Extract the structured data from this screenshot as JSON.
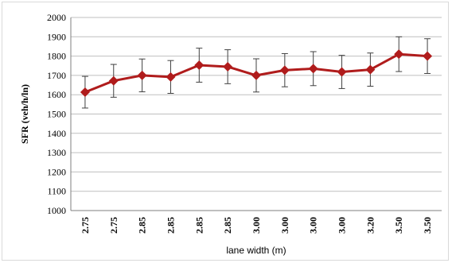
{
  "chart_data": {
    "type": "line",
    "categories": [
      "2.75",
      "2.75",
      "2.85",
      "2.85",
      "2.85",
      "2.85",
      "3.00",
      "3.00",
      "3.00",
      "3.00",
      "3.20",
      "3.50",
      "3.50"
    ],
    "series": [
      {
        "values": [
          1613,
          1672,
          1700,
          1692,
          1753,
          1745,
          1700,
          1727,
          1735,
          1718,
          1730,
          1810,
          1800
        ],
        "error": [
          82,
          85,
          85,
          85,
          88,
          88,
          86,
          86,
          88,
          86,
          86,
          90,
          90
        ]
      }
    ],
    "xlabel": "lane width (m)",
    "ylabel": "SFR (veh/h/ln)",
    "ylim": [
      1000,
      2000
    ],
    "yticks": [
      1000,
      1100,
      1200,
      1300,
      1400,
      1500,
      1600,
      1700,
      1800,
      1900,
      2000
    ],
    "grid": true,
    "legend": "none",
    "colors": {
      "line": "#b01c1c",
      "marker": "#b01c1c",
      "error_bar": "#404040",
      "grid": "#bfbfbf",
      "axis": "#7f7f7f"
    }
  }
}
